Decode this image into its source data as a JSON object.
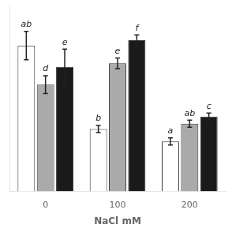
{
  "chart_data": {
    "type": "bar",
    "x_label": "NaCl mM",
    "categories": [
      "0",
      "100",
      "200"
    ],
    "series": [
      {
        "color": "#ffffff",
        "values": [
          82,
          35,
          28
        ],
        "errors": [
          8,
          2,
          2
        ],
        "annotations": [
          "ab",
          "b",
          "a"
        ]
      },
      {
        "color": "#aaaaaa",
        "values": [
          60,
          72,
          38
        ],
        "errors": [
          5,
          3,
          2
        ],
        "annotations": [
          "d",
          "e",
          "ab"
        ]
      },
      {
        "color": "#1a1a1a",
        "values": [
          70,
          85,
          42
        ],
        "errors": [
          10,
          3,
          2
        ],
        "annotations": [
          "e",
          "f",
          "c"
        ]
      }
    ],
    "ylim": [
      0,
      105
    ],
    "grid": false,
    "tick_labels": "x"
  }
}
